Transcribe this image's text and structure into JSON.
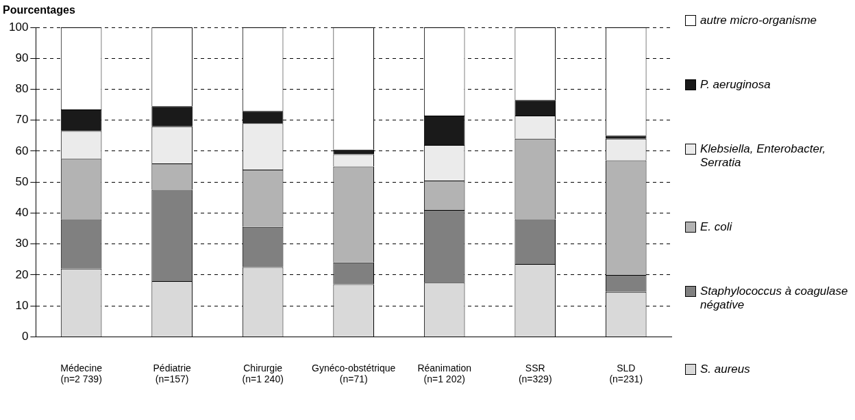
{
  "chart_data": {
    "type": "bar",
    "stacked": true,
    "ylabel": "Pourcentages",
    "categories": [
      "Médecine\n(n=2 739)",
      "Pédiatrie\n(n=157)",
      "Chirurgie\n(n=1 240)",
      "Gynéco-obstétrique\n(n=71)",
      "Réanimation\n(n=1 202)",
      "SSR\n(n=329)",
      "SLD\n(n=231)"
    ],
    "series": [
      {
        "name": "S. aureus",
        "color": "#d9d9d9",
        "values": [
          22,
          18,
          22.5,
          17,
          17.5,
          23.5,
          14.5
        ]
      },
      {
        "name": "Staphylococcus à coagulase négative",
        "color": "#808080",
        "values": [
          16,
          29.5,
          13,
          7,
          23.5,
          14.5,
          5.5
        ]
      },
      {
        "name": "E. coli",
        "color": "#b3b3b3",
        "values": [
          19.5,
          8.5,
          18.5,
          31,
          9.5,
          26,
          37
        ]
      },
      {
        "name": "Klebsiella, Enterobacter, Serratia",
        "color": "#ebebeb",
        "values": [
          9,
          12,
          15,
          4,
          11.5,
          7.5,
          7
        ]
      },
      {
        "name": "P. aeruginosa",
        "color": "#1a1a1a",
        "values": [
          7,
          6.5,
          4,
          1.5,
          9.5,
          5,
          1
        ]
      },
      {
        "name": "autre micro-organisme",
        "color": "#ffffff",
        "values": [
          26.5,
          25.5,
          27,
          39.5,
          28.5,
          23.5,
          35
        ]
      }
    ],
    "ylim": [
      0,
      100
    ],
    "yticks": [
      0,
      10,
      20,
      30,
      40,
      50,
      60,
      70,
      80,
      90,
      100
    ],
    "grid": "y",
    "legend": "right"
  }
}
